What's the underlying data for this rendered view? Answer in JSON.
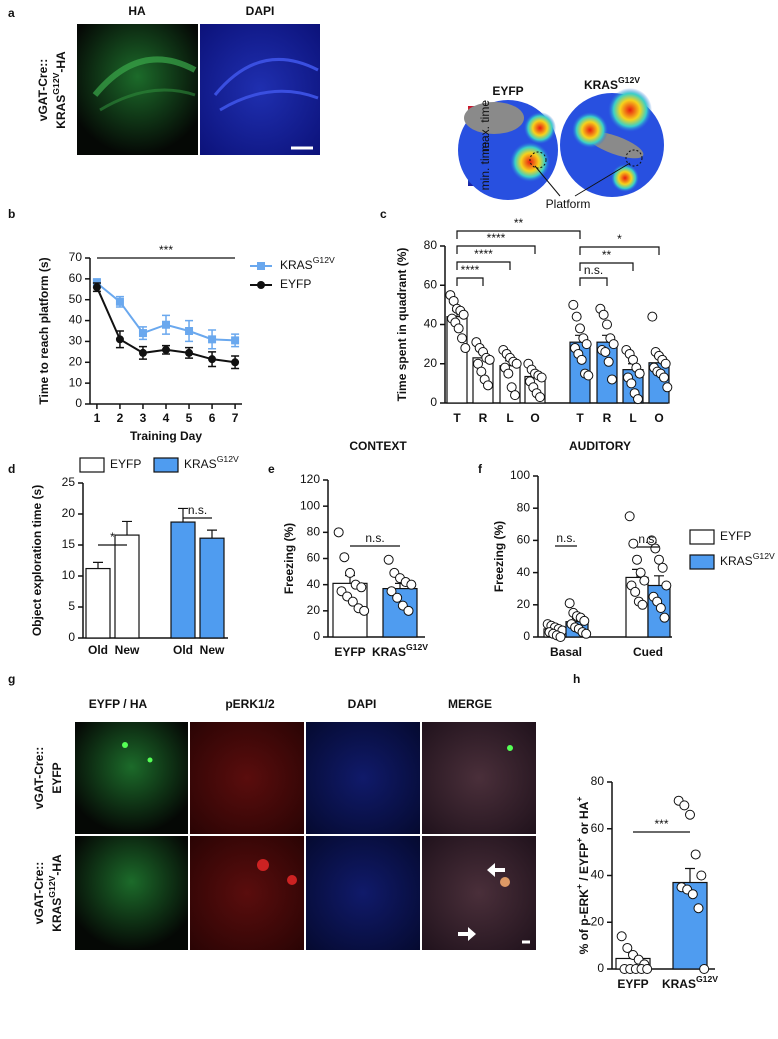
{
  "panel_labels": [
    "a",
    "b",
    "c",
    "d",
    "e",
    "f",
    "g",
    "h"
  ],
  "panel_a": {
    "images": [
      "HA",
      "DAPI"
    ],
    "row_label": [
      [
        "vGAT-Cre::"
      ],
      [
        "KRAS",
        "G12V",
        "-HA"
      ]
    ],
    "heatmap_titles": [
      [
        "EYFP"
      ],
      [
        "KRAS",
        "G12V"
      ]
    ],
    "colorbar": [
      "max. time",
      "min. time"
    ],
    "annotation": "Platform"
  },
  "panel_g": {
    "columns": [
      "EYFP / HA",
      "pERK1/2",
      "DAPI",
      "MERGE"
    ],
    "rows": [
      [
        [
          "vGAT-Cre::"
        ],
        [
          "EYFP"
        ]
      ],
      [
        [
          "vGAT-Cre::"
        ],
        [
          "KRAS",
          "G12V",
          "-HA"
        ]
      ]
    ]
  },
  "chart_data": [
    {
      "type": "line",
      "ylabel": "Time to reach platform (s)",
      "xlabel": "Training Day",
      "x": [
        1,
        2,
        3,
        4,
        5,
        6,
        7
      ],
      "xlim": [
        0.7,
        7.3
      ],
      "xticks": [
        1,
        2,
        3,
        4,
        5,
        6,
        7
      ],
      "ylim": [
        0,
        70
      ],
      "yticks": [
        0,
        10,
        20,
        30,
        40,
        50,
        60,
        70
      ],
      "series": [
        {
          "name": [
            "KRAS",
            "G12V"
          ],
          "color": "#6aa8ee",
          "marker": "square",
          "values": [
            58,
            49,
            34,
            38,
            35,
            31,
            30.5
          ],
          "errors": [
            2,
            2.5,
            3,
            4.5,
            5,
            4.5,
            3
          ]
        },
        {
          "name": [
            "EYFP"
          ],
          "color": "#111111",
          "marker": "circle",
          "values": [
            56,
            31,
            24.5,
            26,
            24.5,
            21.5,
            20
          ],
          "errors": [
            2,
            4,
            3,
            2,
            2.5,
            3.5,
            3
          ]
        }
      ],
      "annotations": [
        "***"
      ]
    },
    {
      "type": "bar",
      "ylabel": "Time spent in quadrant (%)",
      "categories": [
        "T",
        "R",
        "L",
        "O",
        "T",
        "R",
        "L",
        "O"
      ],
      "ylim": [
        0,
        80
      ],
      "yticks": [
        0,
        20,
        40,
        60,
        80
      ],
      "values": [
        44,
        23,
        19,
        13.5,
        31,
        31,
        17,
        20.5
      ],
      "errors": [
        3,
        3,
        2.5,
        2,
        3.5,
        3.5,
        3,
        3
      ],
      "colors": [
        "#ffffff",
        "#ffffff",
        "#ffffff",
        "#ffffff",
        "#4f9cf0",
        "#4f9cf0",
        "#4f9cf0",
        "#4f9cf0"
      ],
      "points": [
        [
          55,
          52,
          48,
          47,
          45,
          43,
          41,
          38,
          33,
          28
        ],
        [
          31,
          28,
          26,
          23,
          22,
          20,
          16,
          12,
          9
        ],
        [
          27,
          25,
          23,
          21,
          20,
          18,
          15,
          8,
          4
        ],
        [
          20,
          17,
          15,
          14,
          13,
          11,
          8,
          5,
          3
        ],
        [
          50,
          44,
          38,
          33,
          30,
          28,
          25,
          22,
          15,
          14
        ],
        [
          48,
          45,
          40,
          33,
          30,
          27,
          26,
          21,
          12
        ],
        [
          27,
          25,
          22,
          18,
          15,
          13,
          10,
          5,
          2
        ],
        [
          44,
          26,
          24,
          22,
          20,
          18,
          16,
          15,
          13,
          8
        ]
      ],
      "annotations": [
        "**",
        "****",
        "****",
        "****",
        "*",
        "**",
        "n.s."
      ]
    },
    {
      "type": "bar",
      "ylabel": "Object exploration time (s)",
      "categories": [
        "Old",
        "New",
        "Old",
        "New"
      ],
      "ylim": [
        0,
        25
      ],
      "yticks": [
        0,
        5,
        10,
        15,
        20,
        25
      ],
      "series": [
        {
          "name": [
            "EYFP"
          ],
          "color": "#ffffff",
          "values": [
            11.2,
            16.6,
            null,
            null
          ],
          "errors": [
            1,
            2.2,
            null,
            null
          ]
        },
        {
          "name": [
            "KRAS",
            "G12V"
          ],
          "color": "#4f9cf0",
          "values": [
            null,
            null,
            18.7,
            16.1
          ],
          "errors": [
            null,
            null,
            2.2,
            1.3
          ]
        }
      ],
      "annotations": [
        "*",
        "n.s."
      ]
    },
    {
      "type": "bar",
      "title": "CONTEXT",
      "ylabel": "Freezing  (%)",
      "categories": [
        [
          "EYFP"
        ],
        [
          "KRAS",
          "G12V"
        ]
      ],
      "ylim": [
        0,
        120
      ],
      "yticks": [
        0,
        20,
        40,
        60,
        80,
        100,
        120
      ],
      "values": [
        41,
        37
      ],
      "errors": [
        6,
        4
      ],
      "colors": [
        "#ffffff",
        "#4f9cf0"
      ],
      "points": [
        [
          80,
          61,
          49,
          40,
          38,
          35,
          31,
          27,
          22,
          20
        ],
        [
          59,
          49,
          45,
          42,
          40,
          35,
          30,
          24,
          20
        ]
      ],
      "annotations": [
        "n.s."
      ]
    },
    {
      "type": "bar",
      "title": "AUDITORY",
      "ylabel": "Freezing  (%)",
      "categories": [
        "Basal",
        "Cued"
      ],
      "ylim": [
        0,
        100
      ],
      "yticks": [
        0,
        20,
        40,
        60,
        80,
        100
      ],
      "series": [
        {
          "name": [
            "EYFP"
          ],
          "color": "#ffffff",
          "values": [
            5,
            37
          ],
          "errors": [
            1,
            5
          ],
          "points": [
            [
              8,
              7,
              6,
              5,
              4,
              3,
              2,
              1,
              0
            ],
            [
              75,
              58,
              48,
              40,
              35,
              32,
              28,
              22,
              20
            ]
          ]
        },
        {
          "name": [
            "KRAS",
            "G12V"
          ],
          "color": "#4f9cf0",
          "values": [
            9.5,
            32
          ],
          "errors": [
            2,
            6
          ],
          "points": [
            [
              21,
              15,
              13,
              12,
              10,
              8,
              6,
              5,
              3,
              2
            ],
            [
              60,
              55,
              48,
              43,
              32,
              25,
              22,
              18,
              12
            ]
          ]
        }
      ],
      "annotations": [
        "n.s.",
        "n.s."
      ]
    },
    {
      "type": "bar",
      "ylabel": [
        "% of p-ERK",
        "+",
        " / EYFP",
        "+",
        " or HA",
        "+"
      ],
      "categories": [
        [
          "EYFP"
        ],
        [
          "KRAS",
          "G12V"
        ]
      ],
      "ylim": [
        0,
        80
      ],
      "yticks": [
        0,
        20,
        40,
        60,
        80
      ],
      "values": [
        4.5,
        37
      ],
      "errors": [
        2,
        6
      ],
      "colors": [
        "#ffffff",
        "#4f9cf0"
      ],
      "points": [
        [
          14,
          9,
          6,
          4,
          2,
          0,
          0,
          0,
          0,
          0
        ],
        [
          72,
          70,
          66,
          49,
          40,
          35,
          34,
          32,
          26,
          0
        ]
      ],
      "annotations": [
        "***"
      ]
    }
  ]
}
